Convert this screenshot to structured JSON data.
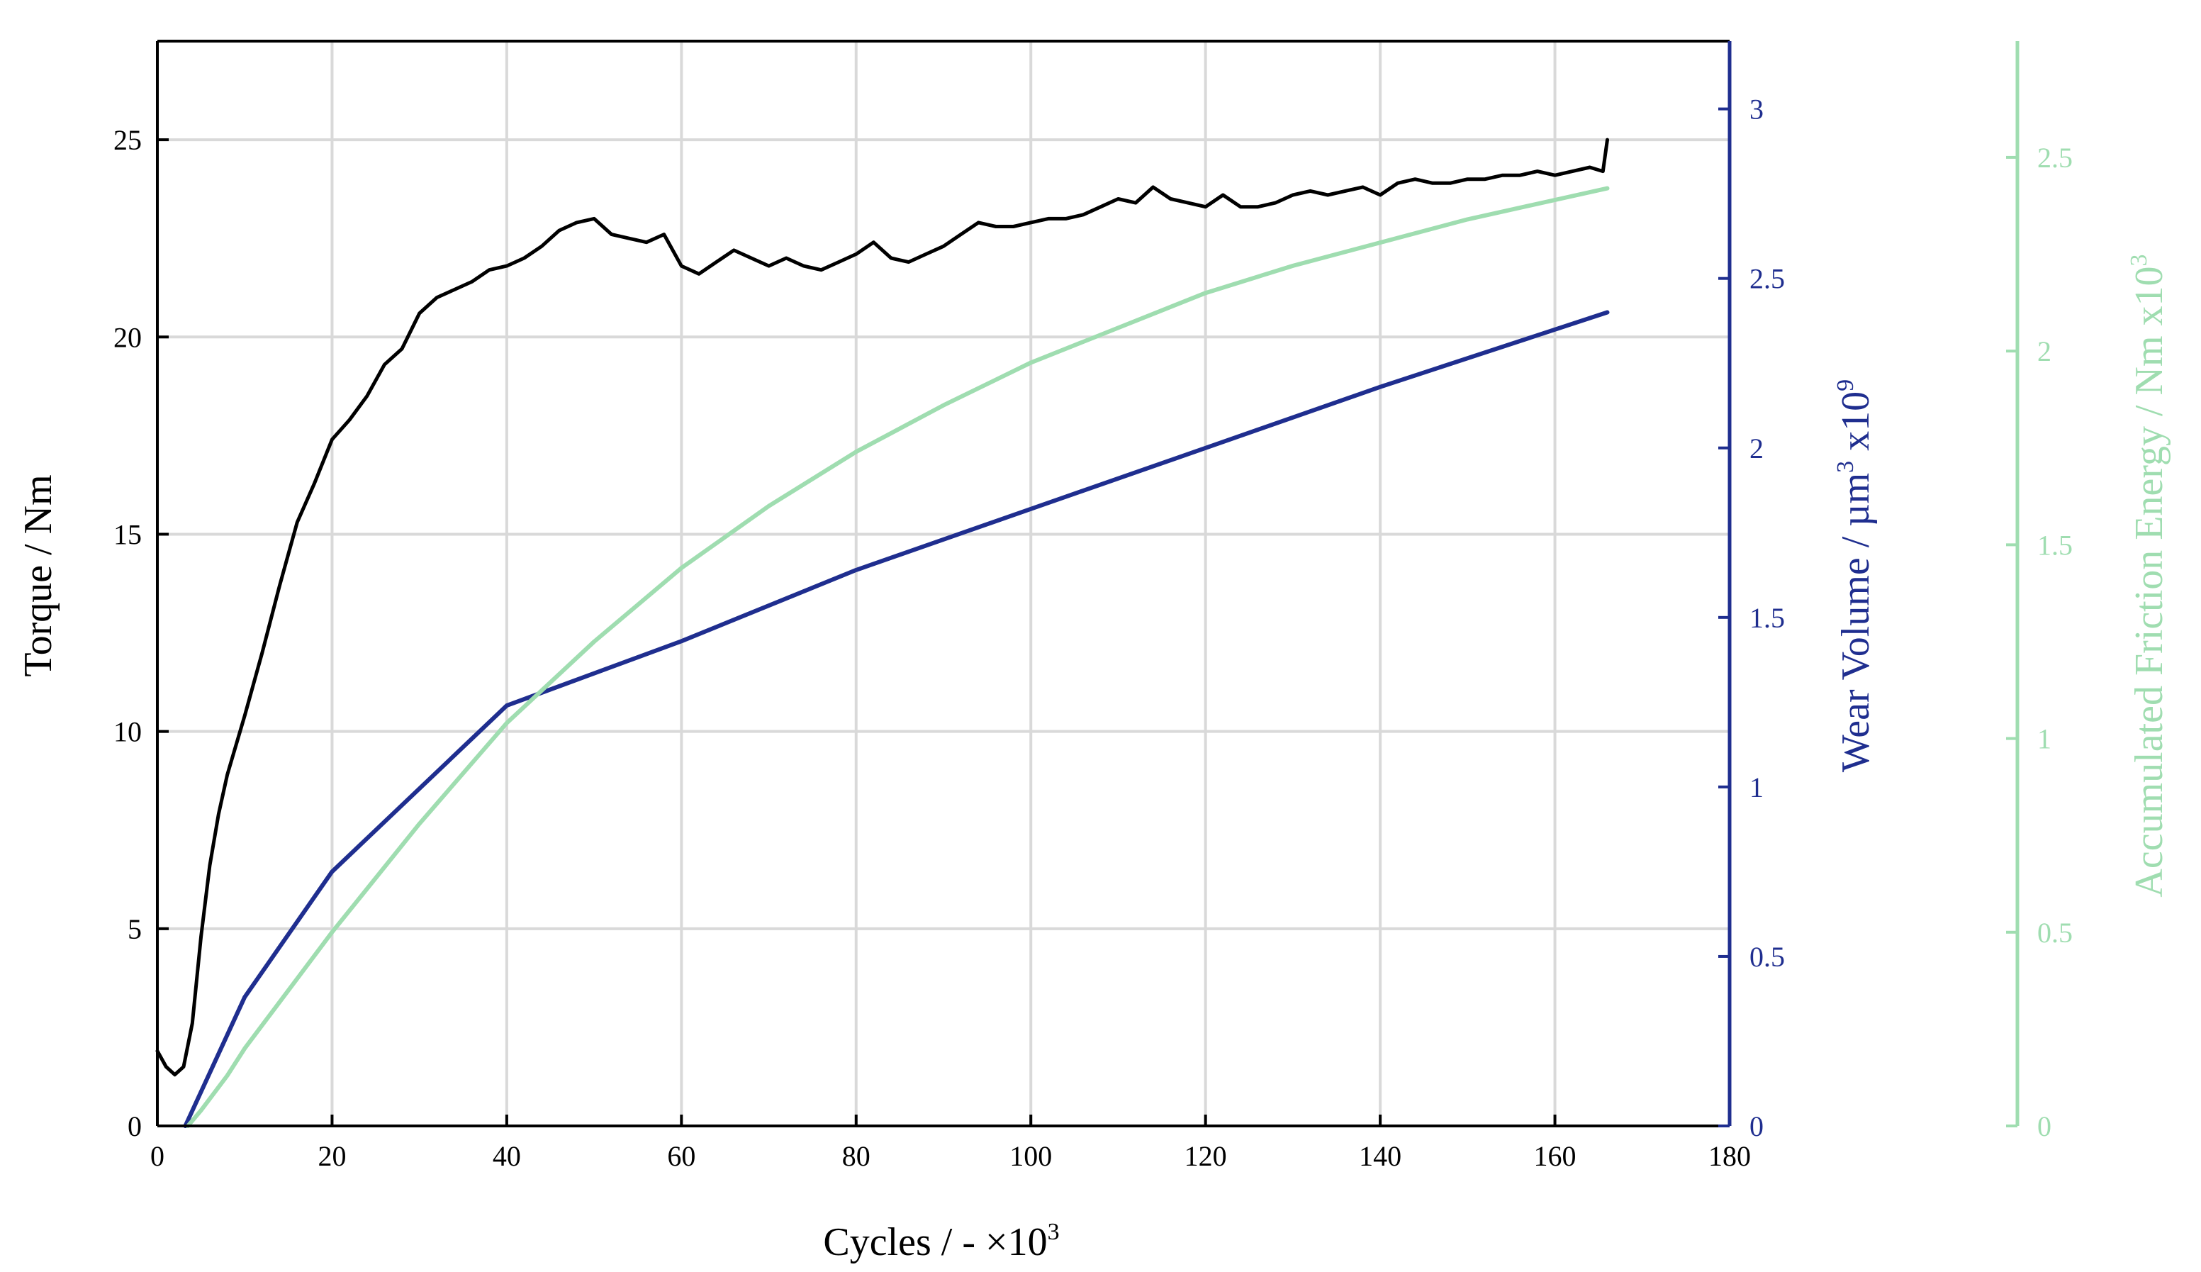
{
  "chart_data": {
    "type": "line",
    "xlabel": "Cycles / - ×10",
    "xlabel_sup": "3",
    "xlim": [
      0,
      180
    ],
    "xticks": [
      0,
      20,
      40,
      60,
      80,
      100,
      120,
      140,
      160,
      180
    ],
    "grid": true,
    "axes": {
      "left": {
        "label": "Torque / Nm",
        "ylim": [
          0,
          27.5
        ],
        "ticks": [
          0,
          5,
          10,
          15,
          20,
          25
        ],
        "color": "#000000"
      },
      "right1": {
        "label": "Wear Volume / µm",
        "label_sup": "3",
        "label_tail": " x10",
        "label_tail_sup": "9",
        "ylim": [
          0,
          3.2
        ],
        "ticks": [
          0,
          0.5,
          1,
          1.5,
          2,
          2.5,
          3
        ],
        "color": "#1f2e8f"
      },
      "right2": {
        "label": "Accumulated Friction Energy / Nm x10",
        "label_sup": "3",
        "ylim": [
          0,
          2.8
        ],
        "ticks": [
          0,
          0.5,
          1,
          1.5,
          2,
          2.5
        ],
        "color": "#9fddb0"
      }
    },
    "series": [
      {
        "axis": "left",
        "color": "#000000",
        "x": [
          0,
          1,
          2,
          3,
          4,
          5,
          6,
          7,
          8,
          10,
          12,
          14,
          16,
          18,
          20,
          22,
          24,
          26,
          28,
          30,
          32,
          34,
          36,
          38,
          40,
          42,
          44,
          46,
          48,
          50,
          52,
          54,
          56,
          58,
          60,
          62,
          64,
          66,
          68,
          70,
          72,
          74,
          76,
          78,
          80,
          82,
          84,
          86,
          88,
          90,
          92,
          94,
          96,
          98,
          100,
          102,
          104,
          106,
          108,
          110,
          112,
          114,
          116,
          118,
          120,
          122,
          124,
          126,
          128,
          130,
          132,
          134,
          136,
          138,
          140,
          142,
          144,
          146,
          148,
          150,
          152,
          154,
          156,
          158,
          160,
          162,
          164,
          165.5,
          166
        ],
        "y": [
          1.9,
          1.5,
          1.3,
          1.5,
          2.6,
          4.8,
          6.6,
          7.9,
          8.9,
          10.4,
          12.0,
          13.7,
          15.3,
          16.3,
          17.4,
          17.9,
          18.5,
          19.3,
          19.7,
          20.6,
          21.0,
          21.2,
          21.4,
          21.7,
          21.8,
          22.0,
          22.3,
          22.7,
          22.9,
          23.0,
          22.6,
          22.5,
          22.4,
          22.6,
          21.8,
          21.6,
          21.9,
          22.2,
          22.0,
          21.8,
          22.0,
          21.8,
          21.7,
          21.9,
          22.1,
          22.4,
          22.0,
          21.9,
          22.1,
          22.3,
          22.6,
          22.9,
          22.8,
          22.8,
          22.9,
          23.0,
          23.0,
          23.1,
          23.3,
          23.5,
          23.4,
          23.8,
          23.5,
          23.4,
          23.3,
          23.6,
          23.3,
          23.3,
          23.4,
          23.6,
          23.7,
          23.6,
          23.7,
          23.8,
          23.6,
          23.9,
          24.0,
          23.9,
          23.9,
          24.0,
          24.0,
          24.1,
          24.1,
          24.2,
          24.1,
          24.2,
          24.3,
          24.2,
          25.0
        ]
      },
      {
        "axis": "right1",
        "color": "#1f2e8f",
        "x": [
          3.2,
          10,
          20,
          40,
          60,
          80,
          100,
          120,
          140,
          166
        ],
        "y": [
          0,
          0.38,
          0.75,
          1.24,
          1.43,
          1.64,
          1.82,
          2.0,
          2.18,
          2.4
        ]
      },
      {
        "axis": "right2",
        "color": "#9fddb0",
        "x": [
          3.5,
          5,
          8,
          10,
          15,
          20,
          30,
          40,
          50,
          60,
          70,
          80,
          90,
          100,
          110,
          120,
          130,
          140,
          150,
          160,
          166
        ],
        "y": [
          0,
          0.04,
          0.13,
          0.2,
          0.35,
          0.5,
          0.78,
          1.04,
          1.25,
          1.44,
          1.6,
          1.74,
          1.86,
          1.97,
          2.06,
          2.15,
          2.22,
          2.28,
          2.34,
          2.39,
          2.42
        ]
      }
    ]
  }
}
